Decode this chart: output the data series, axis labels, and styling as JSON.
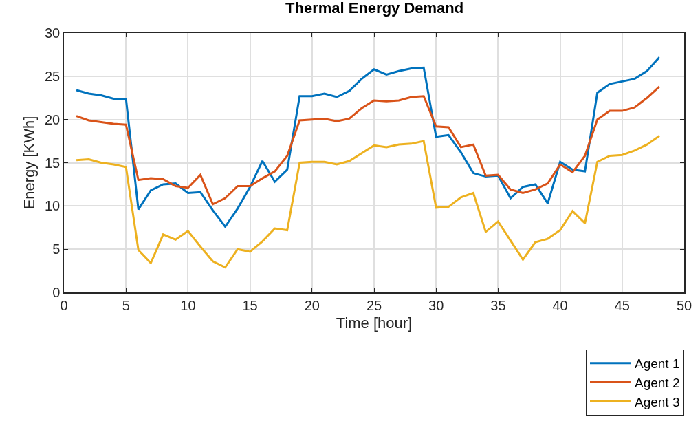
{
  "chart_data": {
    "type": "line",
    "title": "Thermal Energy Demand",
    "xlabel": "Time [hour]",
    "ylabel": "Energy [KWh]",
    "x": [
      1,
      2,
      3,
      4,
      5,
      6,
      7,
      8,
      9,
      10,
      11,
      12,
      13,
      14,
      15,
      16,
      17,
      18,
      19,
      20,
      21,
      22,
      23,
      24,
      25,
      26,
      27,
      28,
      29,
      30,
      31,
      32,
      33,
      34,
      35,
      36,
      37,
      38,
      39,
      40,
      41,
      42,
      43,
      44,
      45,
      46,
      47,
      48
    ],
    "series": [
      {
        "name": "Agent 1",
        "color": "#0072bd",
        "values": [
          23.4,
          23.0,
          22.8,
          22.4,
          22.4,
          9.6,
          11.8,
          12.5,
          12.6,
          11.5,
          11.6,
          9.5,
          7.6,
          9.7,
          12.2,
          15.2,
          12.8,
          14.2,
          22.7,
          22.7,
          23.0,
          22.6,
          23.3,
          24.7,
          25.8,
          25.2,
          25.6,
          25.9,
          26.0,
          18.0,
          18.2,
          16.2,
          13.8,
          13.4,
          13.5,
          10.9,
          12.2,
          12.5,
          10.3,
          15.1,
          14.2,
          14.0,
          23.1,
          24.1,
          24.4,
          24.7,
          25.6,
          27.2
        ]
      },
      {
        "name": "Agent 2",
        "color": "#d95319",
        "values": [
          20.4,
          19.9,
          19.7,
          19.5,
          19.4,
          13.0,
          13.2,
          13.1,
          12.3,
          12.1,
          13.6,
          10.2,
          10.9,
          12.3,
          12.3,
          13.2,
          14.0,
          15.8,
          19.9,
          20.0,
          20.1,
          19.8,
          20.1,
          21.3,
          22.2,
          22.1,
          22.2,
          22.6,
          22.7,
          19.2,
          19.1,
          16.8,
          17.1,
          13.5,
          13.6,
          11.9,
          11.5,
          11.9,
          12.6,
          14.8,
          13.9,
          15.8,
          20.0,
          21.0,
          21.0,
          21.4,
          22.5,
          23.8
        ]
      },
      {
        "name": "Agent 3",
        "color": "#edb120",
        "values": [
          15.3,
          15.4,
          15.0,
          14.8,
          14.5,
          4.9,
          3.4,
          6.7,
          6.1,
          7.1,
          5.3,
          3.6,
          2.9,
          5.0,
          4.7,
          5.9,
          7.4,
          7.2,
          15.0,
          15.1,
          15.1,
          14.8,
          15.2,
          16.1,
          17.0,
          16.8,
          17.1,
          17.2,
          17.5,
          9.8,
          9.9,
          11.0,
          11.5,
          7.0,
          8.2,
          6.0,
          3.8,
          5.8,
          6.2,
          7.2,
          9.4,
          8.0,
          15.1,
          15.8,
          15.9,
          16.4,
          17.1,
          18.1
        ]
      }
    ],
    "xlim": [
      0,
      50
    ],
    "xticks": [
      0,
      5,
      10,
      15,
      20,
      25,
      30,
      35,
      40,
      45,
      50
    ],
    "ylim": [
      0,
      30
    ],
    "yticks": [
      0,
      5,
      10,
      15,
      20,
      25,
      30
    ],
    "grid": true,
    "legend": "bottom right",
    "marker": "none",
    "line_style": "solid"
  }
}
